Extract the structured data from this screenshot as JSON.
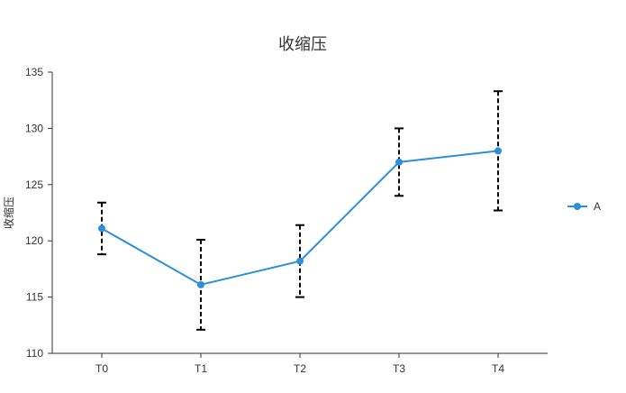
{
  "chart_data": {
    "type": "line",
    "title": "收缩压",
    "xlabel": "",
    "ylabel": "收缩压",
    "categories": [
      "T0",
      "T1",
      "T2",
      "T3",
      "T4"
    ],
    "series": [
      {
        "name": "A",
        "values": [
          121.1,
          116.1,
          118.2,
          127.0,
          128.0
        ],
        "error_low": [
          118.8,
          112.1,
          115.0,
          124.0,
          122.7
        ],
        "error_high": [
          123.4,
          120.1,
          121.4,
          130.0,
          133.3
        ],
        "color": "#2b8fd9"
      }
    ],
    "ylim": [
      110,
      135
    ],
    "yticks": [
      110,
      115,
      120,
      125,
      130,
      135
    ],
    "grid": false,
    "legend": "right",
    "error_bar_style": "dashed",
    "error_bar_color": "#000000"
  }
}
